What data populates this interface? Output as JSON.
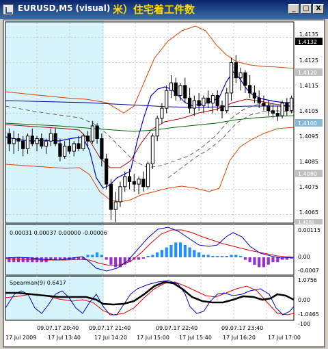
{
  "window": {
    "title": "EURUSD,M5 (visual)",
    "note": "米）住宅着工件数",
    "minimize_label": "_",
    "restore_label": "□",
    "close_label": "X"
  },
  "colors": {
    "session_shade": "#d8f4fb",
    "bull_candle": "#ffffff",
    "bear_candle": "#000000",
    "bollinger": "#e04000",
    "ma_dark_red": "#b00000",
    "ma_blue": "#000088",
    "ma_green": "#006000",
    "ma_dashed": "#606060",
    "histogram_pos": "#1e90ff",
    "histogram_neg": "#9932cc",
    "signal_red": "#e00000",
    "signal_blue": "#0000cc",
    "spearman": "#000000"
  },
  "price_panel": {
    "axis_labels": [
      "1.4135",
      "1.4125",
      "1.4115",
      "1.4105",
      "1.4095",
      "1.4085",
      "1.4075",
      "1.4065"
    ],
    "current_price": "1.4132",
    "level_1": "1.4120",
    "level_2": "1.4100",
    "level_3": "1.4080",
    "bottom_label": "1.4060"
  },
  "macd_panel": {
    "header": "0.00031 0.00037 0.00000 -0.00006",
    "axis_top": "0.00115",
    "axis_zero": "0.00",
    "axis_bottom": "-0.0007"
  },
  "spearman_panel": {
    "header": "Spearman(9) 0.6417",
    "axis_top": "1.0756",
    "axis_zero": "0.00",
    "axis_bottom": "-1.0465",
    "axis_min": "-100"
  },
  "time_axis": {
    "top_row": [
      "09.07.17 20:40",
      "09.07.17 21:40",
      "09.07.17 22:40",
      "09.07.17 23:40"
    ],
    "bottom_row": [
      "17 Jul 2009",
      "17 Jul 13:40",
      "17 Jul 14:20",
      "17 Jul 15:00",
      "17 Jul 15:40",
      "17 Jul 16:20",
      "17 Jul 17:00"
    ]
  },
  "chart_data": {
    "type": "candlestick",
    "ylim": [
      1.406,
      1.414
    ],
    "candles": [
      [
        1.4097,
        1.4099,
        1.409,
        1.4093
      ],
      [
        1.4093,
        1.4098,
        1.4089,
        1.4095
      ],
      [
        1.4095,
        1.4097,
        1.409,
        1.4094
      ],
      [
        1.4094,
        1.4096,
        1.4088,
        1.4091
      ],
      [
        1.4091,
        1.4097,
        1.4089,
        1.4096
      ],
      [
        1.4096,
        1.4099,
        1.4092,
        1.4093
      ],
      [
        1.4093,
        1.4096,
        1.409,
        1.4095
      ],
      [
        1.4095,
        1.4097,
        1.4091,
        1.4092
      ],
      [
        1.4092,
        1.4095,
        1.4089,
        1.4094
      ],
      [
        1.4094,
        1.4099,
        1.4092,
        1.4097
      ],
      [
        1.4097,
        1.4099,
        1.4092,
        1.4093
      ],
      [
        1.4093,
        1.4095,
        1.4086,
        1.4088
      ],
      [
        1.4088,
        1.4094,
        1.4087,
        1.4092
      ],
      [
        1.4092,
        1.4095,
        1.4089,
        1.409
      ],
      [
        1.409,
        1.4094,
        1.4088,
        1.4093
      ],
      [
        1.4093,
        1.4096,
        1.409,
        1.4091
      ],
      [
        1.4091,
        1.4097,
        1.409,
        1.4096
      ],
      [
        1.4096,
        1.4098,
        1.4092,
        1.4094
      ],
      [
        1.4094,
        1.4102,
        1.4093,
        1.41
      ],
      [
        1.41,
        1.4101,
        1.4093,
        1.4095
      ],
      [
        1.4095,
        1.4097,
        1.4084,
        1.4087
      ],
      [
        1.4087,
        1.4089,
        1.4075,
        1.4077
      ],
      [
        1.4077,
        1.4079,
        1.4063,
        1.4067
      ],
      [
        1.4067,
        1.4074,
        1.4062,
        1.407
      ],
      [
        1.407,
        1.4078,
        1.4068,
        1.4076
      ],
      [
        1.4076,
        1.4082,
        1.4074,
        1.408
      ],
      [
        1.408,
        1.4083,
        1.4075,
        1.4078
      ],
      [
        1.4078,
        1.4081,
        1.4074,
        1.4077
      ],
      [
        1.4077,
        1.408,
        1.4073,
        1.4079
      ],
      [
        1.4079,
        1.4082,
        1.4074,
        1.4076
      ],
      [
        1.4076,
        1.4086,
        1.4075,
        1.4085
      ],
      [
        1.4085,
        1.4097,
        1.4083,
        1.4096
      ],
      [
        1.4096,
        1.4104,
        1.4094,
        1.4103
      ],
      [
        1.4103,
        1.4109,
        1.4101,
        1.4107
      ],
      [
        1.4107,
        1.4116,
        1.4105,
        1.4114
      ],
      [
        1.4114,
        1.412,
        1.4111,
        1.4117
      ],
      [
        1.4117,
        1.4119,
        1.411,
        1.4112
      ],
      [
        1.4112,
        1.4117,
        1.411,
        1.4116
      ],
      [
        1.4116,
        1.4119,
        1.4109,
        1.4111
      ],
      [
        1.4111,
        1.4115,
        1.4105,
        1.4107
      ],
      [
        1.4107,
        1.4112,
        1.4104,
        1.411
      ],
      [
        1.411,
        1.4113,
        1.4106,
        1.4108
      ],
      [
        1.4108,
        1.4112,
        1.4105,
        1.4111
      ],
      [
        1.4111,
        1.4114,
        1.4107,
        1.4109
      ],
      [
        1.4109,
        1.4113,
        1.4105,
        1.4112
      ],
      [
        1.4112,
        1.4114,
        1.4106,
        1.4108
      ],
      [
        1.4108,
        1.411,
        1.4103,
        1.4106
      ],
      [
        1.4106,
        1.4115,
        1.4105,
        1.4113
      ],
      [
        1.4113,
        1.4127,
        1.411,
        1.4125
      ],
      [
        1.4125,
        1.4128,
        1.4117,
        1.4119
      ],
      [
        1.4119,
        1.4123,
        1.4114,
        1.4121
      ],
      [
        1.4121,
        1.4122,
        1.4113,
        1.4116
      ],
      [
        1.4116,
        1.412,
        1.4111,
        1.4113
      ],
      [
        1.4113,
        1.4116,
        1.4109,
        1.4111
      ],
      [
        1.4111,
        1.4114,
        1.4107,
        1.4109
      ],
      [
        1.4109,
        1.4112,
        1.4106,
        1.4108
      ],
      [
        1.4108,
        1.411,
        1.4104,
        1.4106
      ],
      [
        1.4106,
        1.4109,
        1.4103,
        1.4105
      ],
      [
        1.4105,
        1.4108,
        1.4102,
        1.4104
      ],
      [
        1.4104,
        1.411,
        1.4103,
        1.4109
      ],
      [
        1.4109,
        1.4111,
        1.4104,
        1.4106
      ],
      [
        1.4106,
        1.4112,
        1.4105,
        1.4111
      ]
    ],
    "macd_histogram": [
      -0.0002,
      -0.0002,
      -0.0002,
      -0.0002,
      -0.0002,
      -0.0002,
      -0.0002,
      -0.0002,
      -0.0002,
      -0.0001,
      -0.0001,
      -0.0001,
      -0.0001,
      -0.0001,
      -0.0001,
      -0.0001,
      -0.0001,
      0.0001,
      0.0001,
      0.0002,
      0.0001,
      -0.0001,
      -0.0003,
      -0.0004,
      -0.0004,
      -0.0003,
      -0.0002,
      -0.0001,
      -0.0001,
      -5e-05,
      0,
      0.0001,
      0.0002,
      0.0003,
      0.0004,
      0.0005,
      0.0006,
      0.0006,
      0.0005,
      0.0004,
      0.0003,
      0.0002,
      0.0001,
      0.0001,
      5e-05,
      3e-05,
      3e-05,
      5e-05,
      0.0001,
      0.0001,
      5e-05,
      -0.0001,
      -0.0002,
      -0.0003,
      -0.0004,
      -0.0004,
      -0.0003,
      -0.0002,
      -0.0002,
      -0.0001,
      -0.0001,
      -6e-05
    ]
  }
}
